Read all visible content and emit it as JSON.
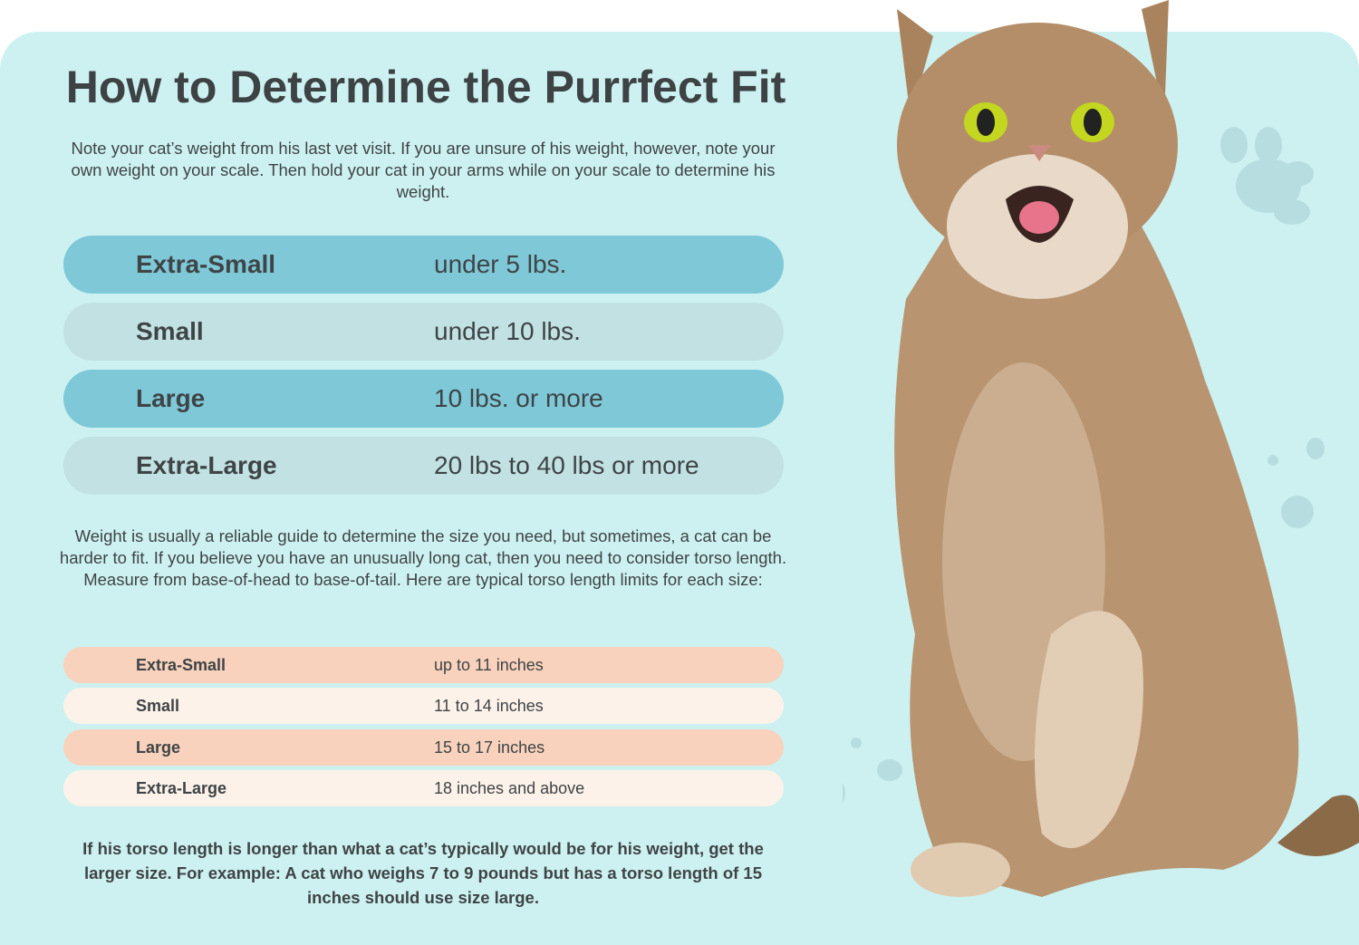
{
  "title": "How to Determine the Purrfect Fit",
  "intro": "Note your cat’s weight from his last vet visit. If you are unsure of his weight, however, note your own weight on your scale. Then hold your cat in your arms while on your scale to determine his weight.",
  "weight_sizes": [
    {
      "size": "Extra-Small",
      "value": "under 5 lbs."
    },
    {
      "size": "Small",
      "value": "under 10 lbs."
    },
    {
      "size": "Large",
      "value": "10 lbs. or more"
    },
    {
      "size": "Extra-Large",
      "value": "20 lbs to 40 lbs or more"
    }
  ],
  "torso_intro": "Weight is usually a reliable guide to determine the size you need, but sometimes, a cat can be harder to fit. If you believe you have an unusually long cat, then you need to consider torso length. Measure from base-of-head to base-of-tail. Here are typical torso length limits for each size:",
  "torso_sizes": [
    {
      "size": "Extra-Small",
      "value": "up to 11 inches"
    },
    {
      "size": "Small",
      "value": "11 to 14 inches"
    },
    {
      "size": "Large",
      "value": "15 to 17 inches"
    },
    {
      "size": "Extra-Large",
      "value": "18 inches and above"
    }
  ],
  "note": "If his torso length is longer than what a cat’s typically would be for his weight, get the larger size. For example: A cat who weighs 7 to 9 pounds but has a torso length of 15 inches should use size large.",
  "colors": {
    "background": "#cdf1f1",
    "row_blue": "#7ec8d8",
    "row_grey": "#c2e1e3",
    "row_peach": "#f8d2bc",
    "row_cream": "#fcf2ea",
    "text": "#3f4446"
  },
  "image": "tabby-cat-photo"
}
